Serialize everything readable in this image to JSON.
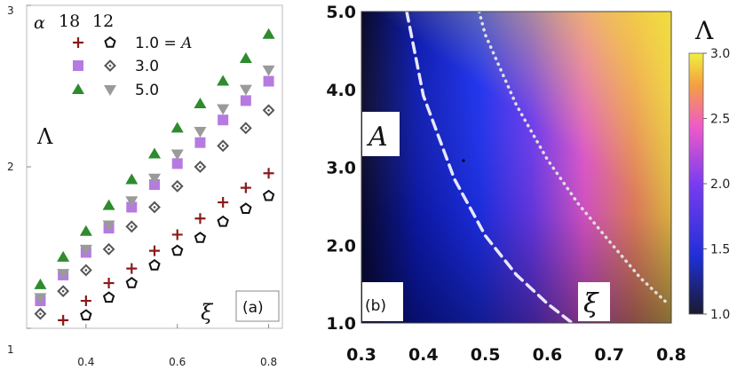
{
  "chart_data": [
    {
      "type": "scatter",
      "panel_label": "(a)",
      "xlabel": "ξ",
      "ylabel": "Λ",
      "xlim": [
        0.27,
        0.83
      ],
      "ylim": [
        1.0,
        3.0
      ],
      "xticks": [
        0.4,
        0.6,
        0.8
      ],
      "xtick_labels": [
        "0.4",
        "0.6",
        "0.8"
      ],
      "yticks": [
        1,
        2,
        3
      ],
      "ytick_labels": [
        "1",
        "2",
        "3"
      ],
      "legend": {
        "alpha_label": "α",
        "col_labels": [
          "18",
          "12"
        ],
        "rows": [
          {
            "label": "1.0 = A",
            "value_text": "1.0",
            "a_text": "A"
          },
          {
            "label": "3.0"
          },
          {
            "label": "5.0"
          }
        ]
      },
      "series": [
        {
          "name": "α=18, A=1.0",
          "marker": "plus",
          "color": "#8b1a1a",
          "x": [
            0.35,
            0.4,
            0.45,
            0.5,
            0.55,
            0.6,
            0.65,
            0.7,
            0.75,
            0.8
          ],
          "y": [
            1.05,
            1.17,
            1.28,
            1.37,
            1.48,
            1.58,
            1.68,
            1.78,
            1.87,
            1.96
          ]
        },
        {
          "name": "α=12, A=1.0",
          "marker": "pentagon",
          "color": "#111111",
          "x": [
            0.4,
            0.45,
            0.5,
            0.55,
            0.6,
            0.65,
            0.7,
            0.75,
            0.8
          ],
          "y": [
            1.08,
            1.19,
            1.28,
            1.39,
            1.48,
            1.56,
            1.66,
            1.74,
            1.82
          ]
        },
        {
          "name": "α=18, A=3.0",
          "marker": "square",
          "color": "#b57be0",
          "x": [
            0.3,
            0.35,
            0.4,
            0.45,
            0.5,
            0.55,
            0.6,
            0.65,
            0.7,
            0.75,
            0.8
          ],
          "y": [
            1.17,
            1.33,
            1.47,
            1.62,
            1.75,
            1.89,
            2.02,
            2.15,
            2.29,
            2.41,
            2.53
          ]
        },
        {
          "name": "α=12, A=3.0",
          "marker": "diamond",
          "color": "#555555",
          "x": [
            0.3,
            0.35,
            0.4,
            0.45,
            0.5,
            0.55,
            0.6,
            0.65,
            0.7,
            0.75,
            0.8
          ],
          "y": [
            1.09,
            1.23,
            1.36,
            1.49,
            1.63,
            1.75,
            1.88,
            2.0,
            2.13,
            2.24,
            2.35
          ]
        },
        {
          "name": "α=18, A=5.0",
          "marker": "triangle-up",
          "color": "#2e8b2e",
          "x": [
            0.3,
            0.35,
            0.4,
            0.45,
            0.5,
            0.55,
            0.6,
            0.65,
            0.7,
            0.75,
            0.8
          ],
          "y": [
            1.27,
            1.44,
            1.6,
            1.76,
            1.92,
            2.08,
            2.24,
            2.39,
            2.53,
            2.67,
            2.82
          ]
        },
        {
          "name": "α=12, A=5.0",
          "marker": "triangle-down",
          "color": "#9a9a9a",
          "x": [
            0.3,
            0.35,
            0.4,
            0.45,
            0.5,
            0.55,
            0.6,
            0.65,
            0.7,
            0.75,
            0.8
          ],
          "y": [
            1.19,
            1.34,
            1.49,
            1.64,
            1.79,
            1.93,
            2.08,
            2.22,
            2.36,
            2.48,
            2.6
          ]
        }
      ]
    },
    {
      "type": "heatmap",
      "panel_label": "(b)",
      "xlabel": "ξ",
      "ylabel": "A",
      "xlim": [
        0.3,
        0.8
      ],
      "ylim": [
        1.0,
        5.0
      ],
      "xticks": [
        0.3,
        0.4,
        0.5,
        0.6,
        0.7,
        0.8
      ],
      "xtick_labels": [
        "0.3",
        "0.4",
        "0.5",
        "0.6",
        "0.7",
        "0.8"
      ],
      "yticks": [
        1.0,
        2.0,
        3.0,
        4.0,
        5.0
      ],
      "ytick_labels": [
        "1.0",
        "2.0",
        "3.0",
        "4.0",
        "5.0"
      ],
      "colorbar": {
        "label": "Λ",
        "range": [
          1.0,
          3.0
        ],
        "ticks": [
          1.0,
          1.5,
          2.0,
          2.5,
          3.0
        ],
        "tick_labels": [
          "1.0",
          "1.5",
          "2.0",
          "2.5",
          "3.0"
        ],
        "colors": [
          "#1a1a2e",
          "#1f2fd6",
          "#7a3cf0",
          "#f05ac8",
          "#f5a040",
          "#f0f040"
        ]
      },
      "contours": [
        {
          "style": "dashed",
          "x": [
            0.373,
            0.4,
            0.45,
            0.5,
            0.55,
            0.6,
            0.64
          ],
          "y": [
            5.0,
            3.92,
            2.85,
            2.12,
            1.62,
            1.25,
            1.0
          ]
        },
        {
          "style": "dotted",
          "x": [
            0.49,
            0.5,
            0.55,
            0.6,
            0.65,
            0.7,
            0.75,
            0.79
          ],
          "y": [
            5.0,
            4.7,
            3.8,
            3.1,
            2.53,
            2.05,
            1.58,
            1.28
          ]
        }
      ]
    }
  ]
}
